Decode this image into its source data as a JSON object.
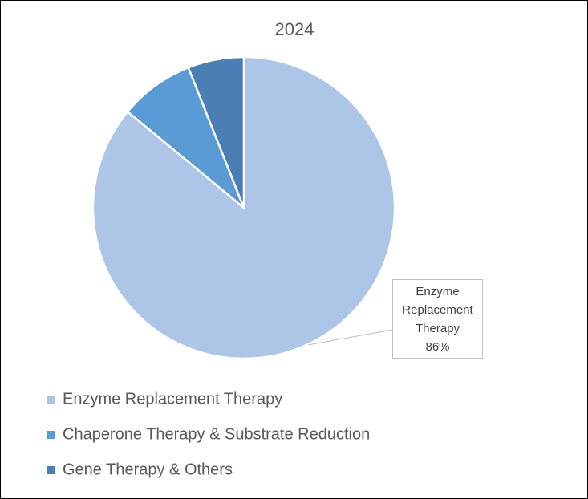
{
  "chart_data": {
    "type": "pie",
    "title": "2024",
    "categories": [
      "Enzyme Replacement Therapy",
      "Chaperone Therapy & Substrate Reduction",
      "Gene Therapy & Others"
    ],
    "values": [
      86,
      8,
      6
    ],
    "value_labels": [
      "86%",
      null,
      null
    ],
    "colors": [
      "#adc5e7",
      "#5b9bd5",
      "#4a7eb5"
    ],
    "legend": "bottom"
  }
}
